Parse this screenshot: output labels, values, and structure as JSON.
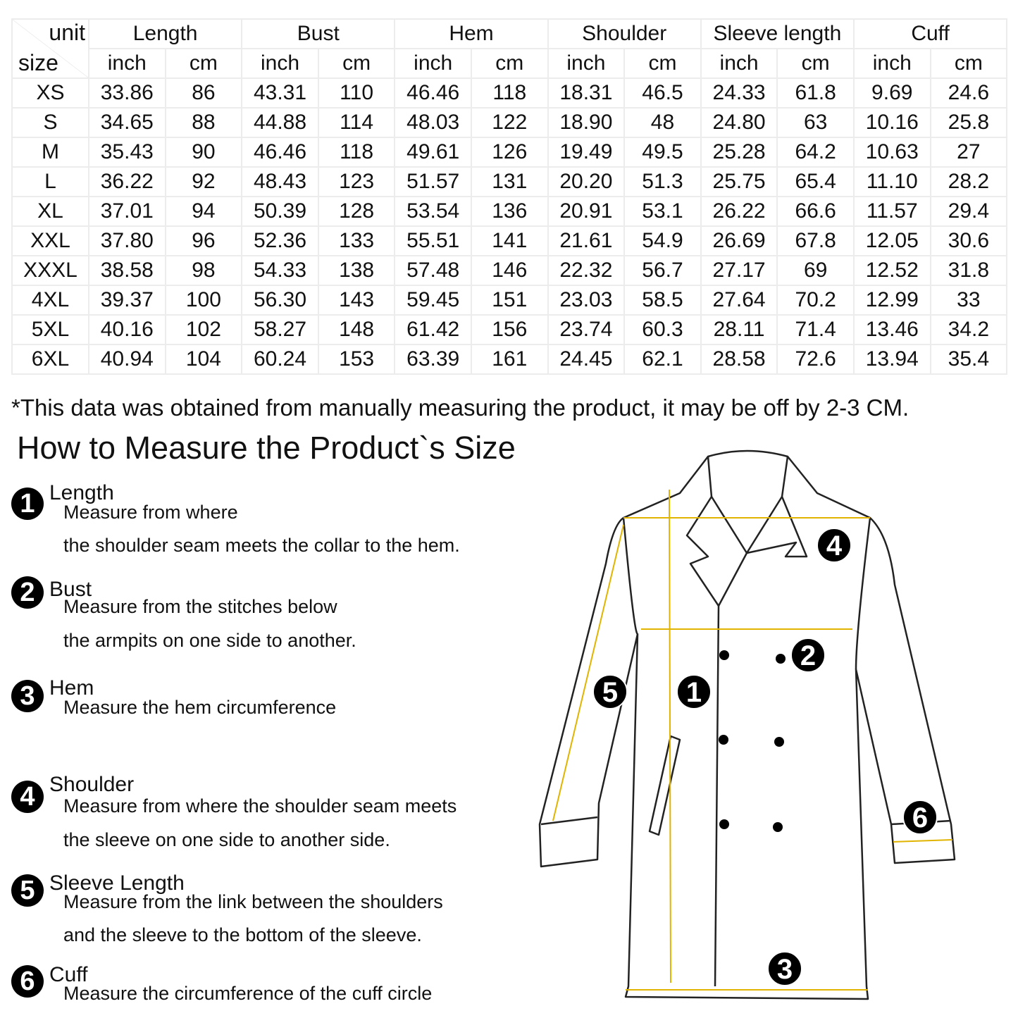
{
  "table": {
    "corner_unit": "unit",
    "corner_size": "size",
    "groups": [
      "Length",
      "Bust",
      "Hem",
      "Shoulder",
      "Sleeve length",
      "Cuff"
    ],
    "subheaders": [
      "inch",
      "cm"
    ],
    "rows": [
      [
        "XS",
        "33.86",
        "86",
        "43.31",
        "110",
        "46.46",
        "118",
        "18.31",
        "46.5",
        "24.33",
        "61.8",
        "9.69",
        "24.6"
      ],
      [
        "S",
        "34.65",
        "88",
        "44.88",
        "114",
        "48.03",
        "122",
        "18.90",
        "48",
        "24.80",
        "63",
        "10.16",
        "25.8"
      ],
      [
        "M",
        "35.43",
        "90",
        "46.46",
        "118",
        "49.61",
        "126",
        "19.49",
        "49.5",
        "25.28",
        "64.2",
        "10.63",
        "27"
      ],
      [
        "L",
        "36.22",
        "92",
        "48.43",
        "123",
        "51.57",
        "131",
        "20.20",
        "51.3",
        "25.75",
        "65.4",
        "11.10",
        "28.2"
      ],
      [
        "XL",
        "37.01",
        "94",
        "50.39",
        "128",
        "53.54",
        "136",
        "20.91",
        "53.1",
        "26.22",
        "66.6",
        "11.57",
        "29.4"
      ],
      [
        "XXL",
        "37.80",
        "96",
        "52.36",
        "133",
        "55.51",
        "141",
        "21.61",
        "54.9",
        "26.69",
        "67.8",
        "12.05",
        "30.6"
      ],
      [
        "XXXL",
        "38.58",
        "98",
        "54.33",
        "138",
        "57.48",
        "146",
        "22.32",
        "56.7",
        "27.17",
        "69",
        "12.52",
        "31.8"
      ],
      [
        "4XL",
        "39.37",
        "100",
        "56.30",
        "143",
        "59.45",
        "151",
        "23.03",
        "58.5",
        "27.64",
        "70.2",
        "12.99",
        "33"
      ],
      [
        "5XL",
        "40.16",
        "102",
        "58.27",
        "148",
        "61.42",
        "156",
        "23.74",
        "60.3",
        "28.11",
        "71.4",
        "13.46",
        "34.2"
      ],
      [
        "6XL",
        "40.94",
        "104",
        "60.24",
        "153",
        "63.39",
        "161",
        "24.45",
        "62.1",
        "28.58",
        "72.6",
        "13.94",
        "35.4"
      ]
    ]
  },
  "note": "*This data was obtained from manually measuring the product, it may be off by 2-3 CM.",
  "guide": {
    "title": "How to Measure the Product`s Size",
    "items": [
      {
        "num": "1",
        "title": "Length",
        "lines": [
          "Measure from where",
          "the shoulder seam meets the collar to the hem."
        ]
      },
      {
        "num": "2",
        "title": "Bust",
        "lines": [
          "Measure from the stitches below",
          "the armpits on one side to another."
        ]
      },
      {
        "num": "3",
        "title": "Hem",
        "lines": [
          "Measure the hem circumference"
        ]
      },
      {
        "num": "4",
        "title": "Shoulder",
        "lines": [
          "Measure from where the shoulder seam meets",
          "the sleeve on one side to another side."
        ]
      },
      {
        "num": "5",
        "title": "Sleeve Length",
        "lines": [
          "Measure from the link between the shoulders",
          "and the sleeve to the bottom of the sleeve."
        ]
      },
      {
        "num": "6",
        "title": "Cuff",
        "lines": [
          "Measure the circumference of the cuff circle"
        ]
      }
    ]
  },
  "diagram": {
    "markers": [
      "1",
      "2",
      "3",
      "4",
      "5",
      "6"
    ],
    "colors": {
      "measure_line": "#e0b400",
      "outline": "#222222",
      "marker_bg": "#000000"
    }
  }
}
